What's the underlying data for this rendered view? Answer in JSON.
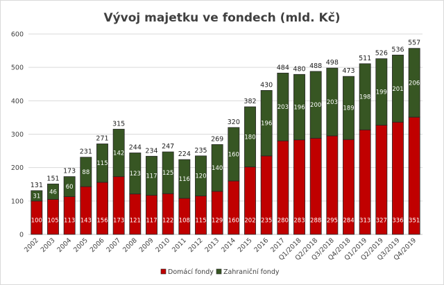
{
  "chart_data": {
    "type": "bar",
    "stacked": true,
    "title": "Vývoj majetku ve fondech (mld. Kč)",
    "xlabel": "",
    "ylabel": "",
    "ylim": [
      0,
      600
    ],
    "yticks": [
      0,
      100,
      200,
      300,
      400,
      500,
      600
    ],
    "grid": true,
    "legend_position": "bottom",
    "categories": [
      "2002",
      "2003",
      "2004",
      "2005",
      "2006",
      "2007",
      "2008",
      "2009",
      "2010",
      "2011",
      "2012",
      "2013",
      "2014",
      "2015",
      "2016",
      "2017",
      "Q1/2018",
      "Q2/2018",
      "Q3/2018",
      "Q4/2018",
      "Q1/2019",
      "Q2/2019",
      "Q3/2019",
      "Q4/2019"
    ],
    "series": [
      {
        "name": "Domácí fondy",
        "color": "#c00000",
        "values": [
          100,
          105,
          113,
          143,
          156,
          173,
          121,
          117,
          122,
          108,
          115,
          129,
          160,
          202,
          235,
          280,
          283,
          288,
          295,
          284,
          313,
          327,
          336,
          351
        ]
      },
      {
        "name": "Zahraniční fondy",
        "color": "#375623",
        "values": [
          31,
          46,
          60,
          88,
          115,
          142,
          123,
          117,
          125,
          116,
          120,
          140,
          160,
          180,
          196,
          203,
          196,
          200,
          203,
          189,
          198,
          199,
          201,
          206
        ]
      }
    ],
    "totals": [
      131,
      151,
      173,
      231,
      271,
      315,
      244,
      234,
      247,
      224,
      235,
      269,
      320,
      382,
      430,
      484,
      480,
      488,
      498,
      473,
      511,
      526,
      536,
      557
    ]
  }
}
